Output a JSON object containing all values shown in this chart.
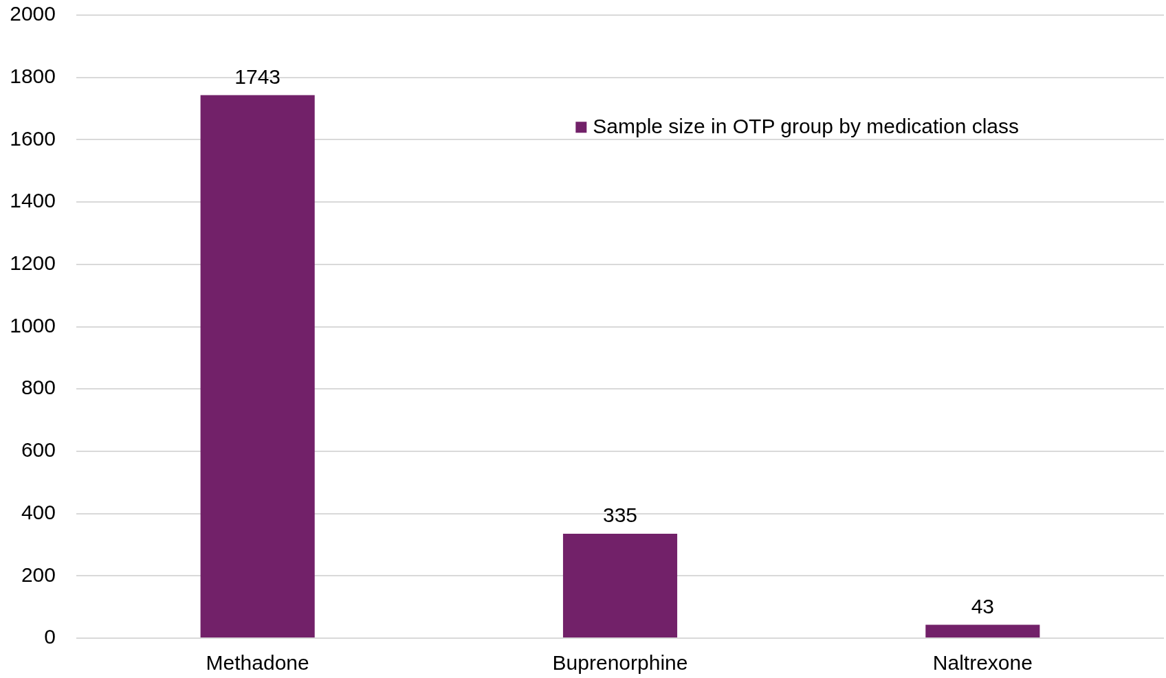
{
  "chart_data": {
    "type": "bar",
    "categories": [
      "Methadone",
      "Buprenorphine",
      "Naltrexone"
    ],
    "series": [
      {
        "name": "Sample size in OTP group by medication class",
        "color": "#722169",
        "values": [
          1743,
          335,
          43
        ]
      }
    ],
    "ylim": [
      0,
      2000
    ],
    "yticks": [
      0,
      200,
      400,
      600,
      800,
      1000,
      1200,
      1400,
      1600,
      1800,
      2000
    ],
    "grid": "y",
    "legend": "top right",
    "data_labels": true
  }
}
